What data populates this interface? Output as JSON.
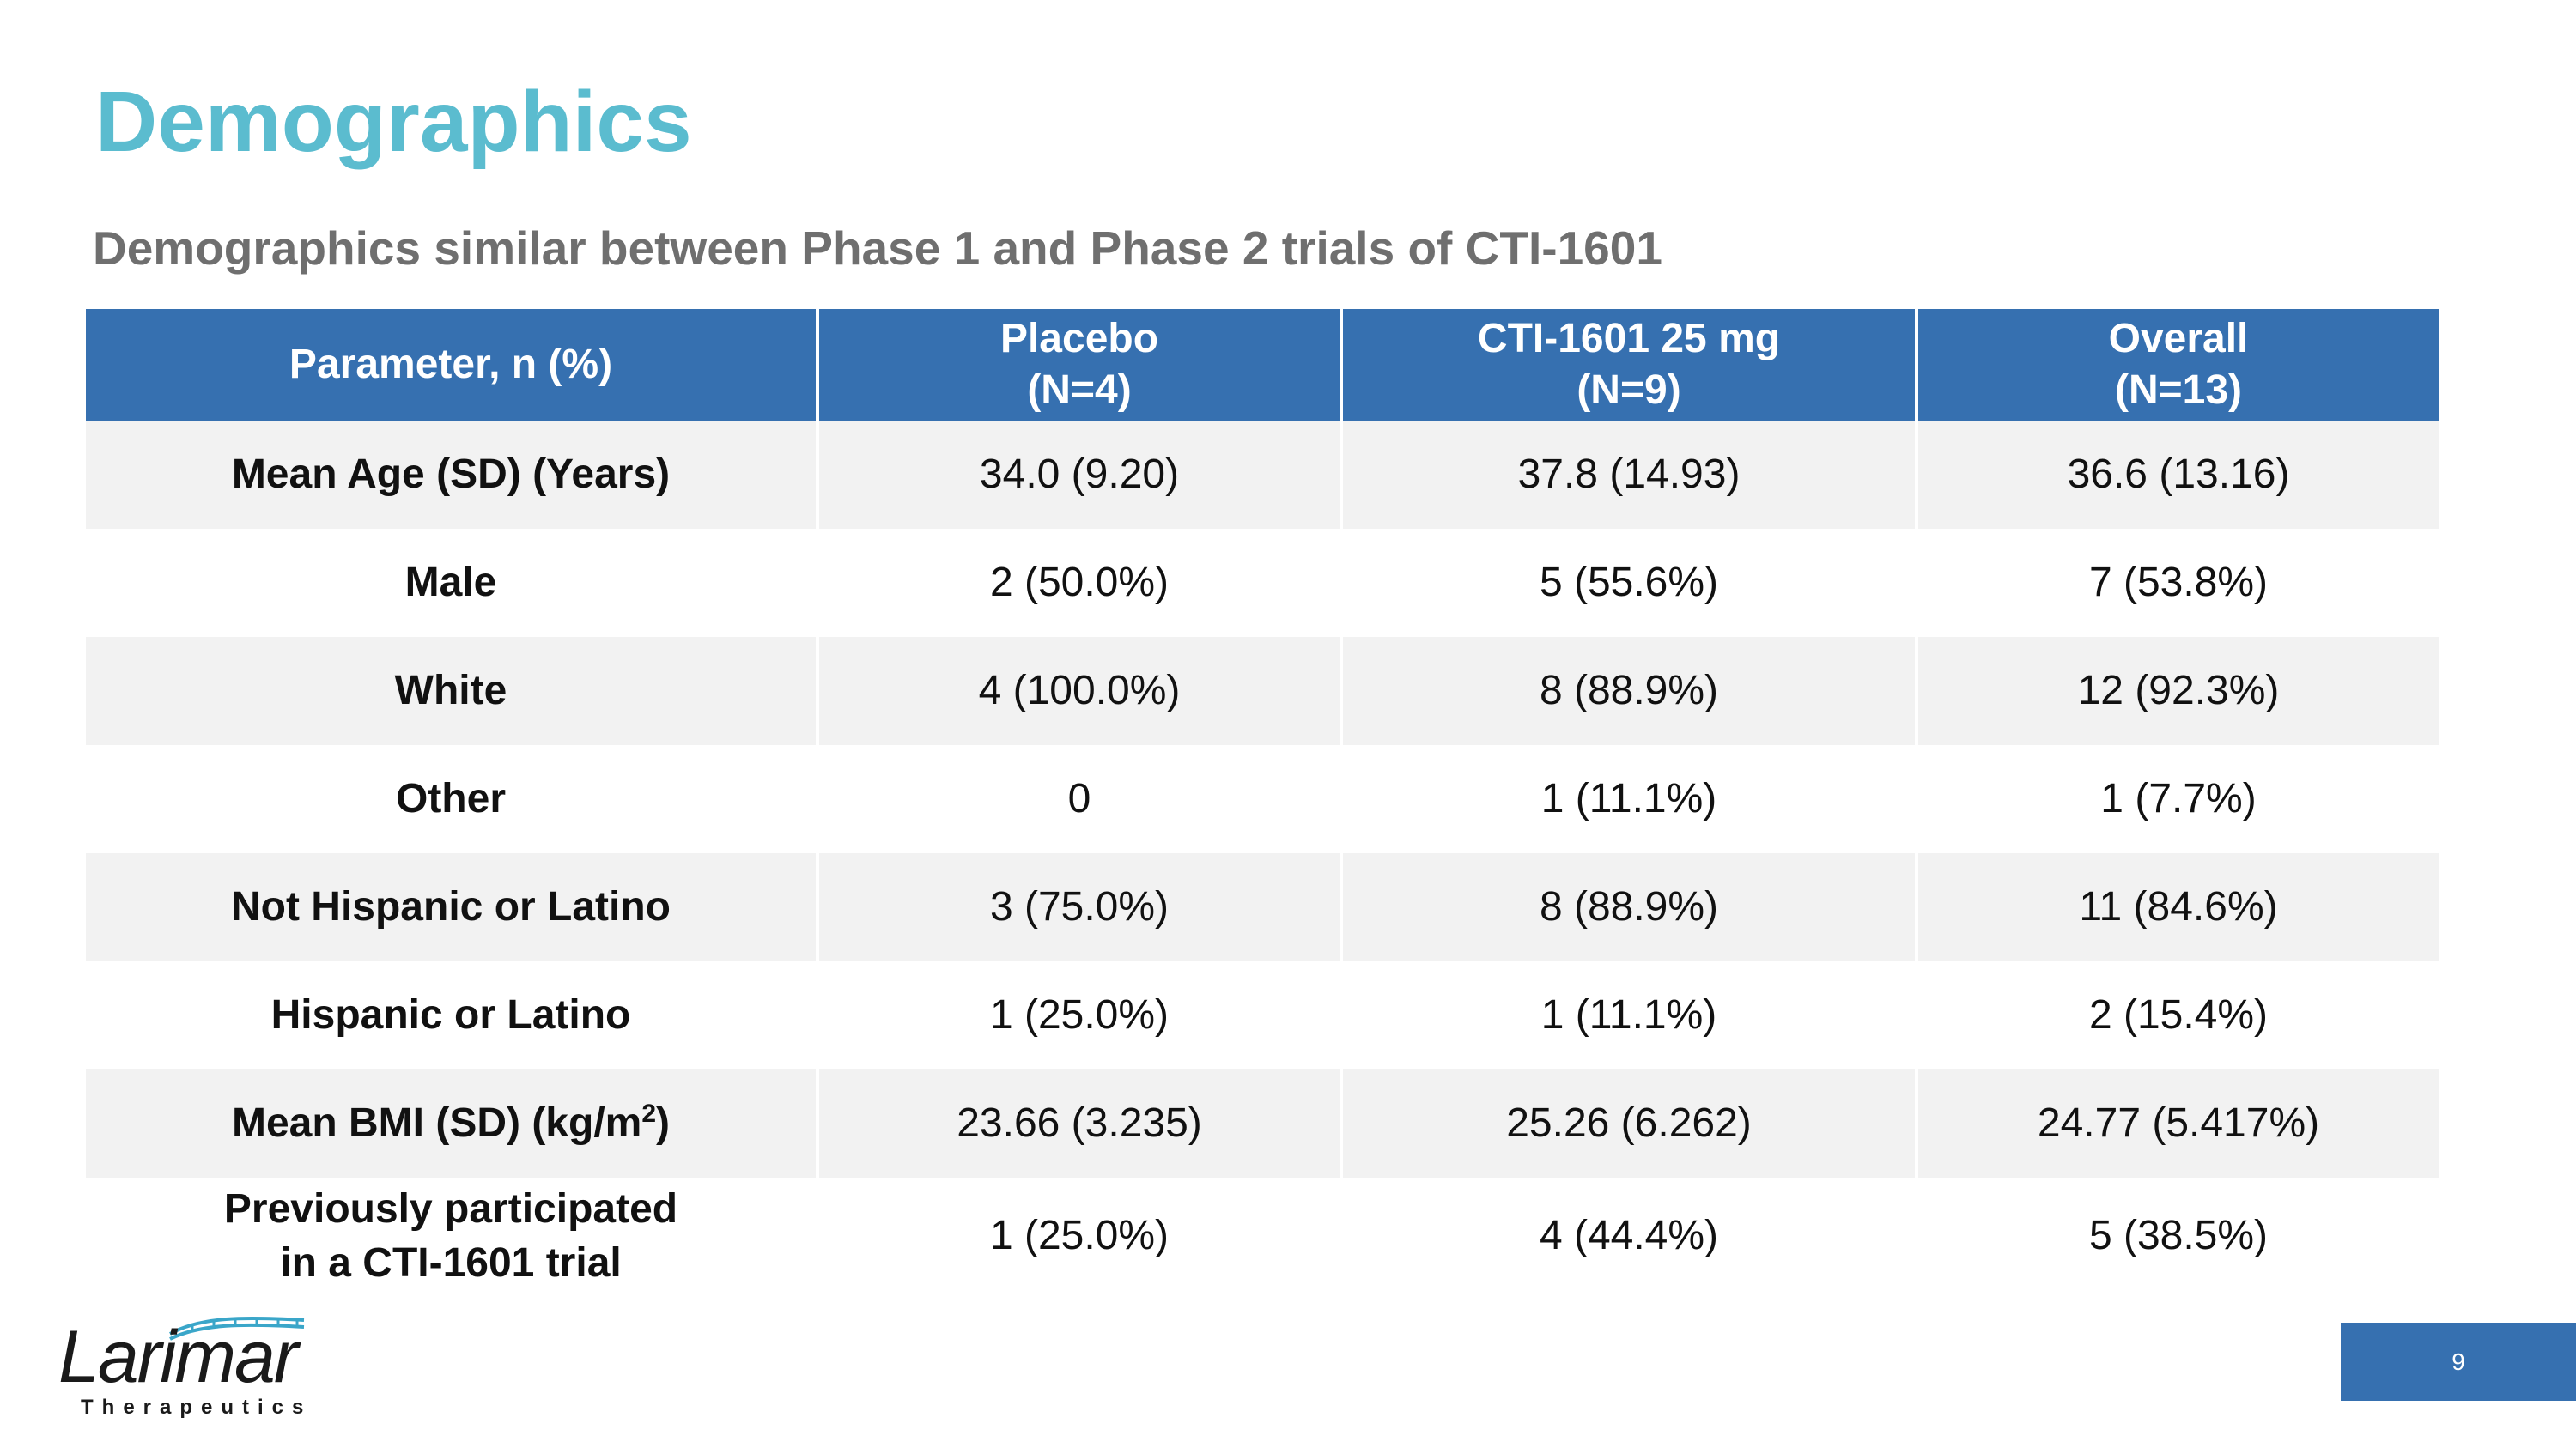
{
  "slide": {
    "title": "Demographics",
    "subtitle": "Demographics similar between Phase 1 and Phase 2 trials of CTI-1601",
    "page_number": "9"
  },
  "table": {
    "headers": [
      {
        "line1": "Parameter, n (%)",
        "line2": ""
      },
      {
        "line1": "Placebo",
        "line2": "(N=4)"
      },
      {
        "line1": "CTI-1601 25 mg",
        "line2": "(N=9)"
      },
      {
        "line1": "Overall",
        "line2": "(N=13)"
      }
    ],
    "rows": [
      {
        "param": "Mean Age (SD) (Years)",
        "placebo": "34.0 (9.20)",
        "cti": "37.8 (14.93)",
        "overall": "36.6 (13.16)"
      },
      {
        "param": "Male",
        "placebo": "2 (50.0%)",
        "cti": "5 (55.6%)",
        "overall": "7 (53.8%)"
      },
      {
        "param": "White",
        "placebo": "4 (100.0%)",
        "cti": "8 (88.9%)",
        "overall": "12 (92.3%)"
      },
      {
        "param": "Other",
        "placebo": "0",
        "cti": "1 (11.1%)",
        "overall": "1 (7.7%)"
      },
      {
        "param": "Not Hispanic or Latino",
        "placebo": "3 (75.0%)",
        "cti": "8 (88.9%)",
        "overall": "11 (84.6%)"
      },
      {
        "param": "Hispanic or Latino",
        "placebo": "1 (25.0%)",
        "cti": "1 (11.1%)",
        "overall": "2 (15.4%)"
      },
      {
        "param": "Mean BMI (SD) (kg/m",
        "param_sup": "2",
        "param_tail": ")",
        "placebo": "23.66 (3.235)",
        "cti": "25.26 (6.262)",
        "overall": "24.77 (5.417%)"
      },
      {
        "param": "Previously participated",
        "param_line2": "in a CTI-1601 trial",
        "placebo": "1 (25.0%)",
        "cti": "4 (44.4%)",
        "overall": "5 (38.5%)"
      }
    ]
  },
  "logo": {
    "name": "Larimar",
    "tagline": "Therapeutics"
  },
  "colors": {
    "title": "#5bbccf",
    "header_bg": "#3670b0",
    "shaded_row": "#f2f2f2"
  }
}
